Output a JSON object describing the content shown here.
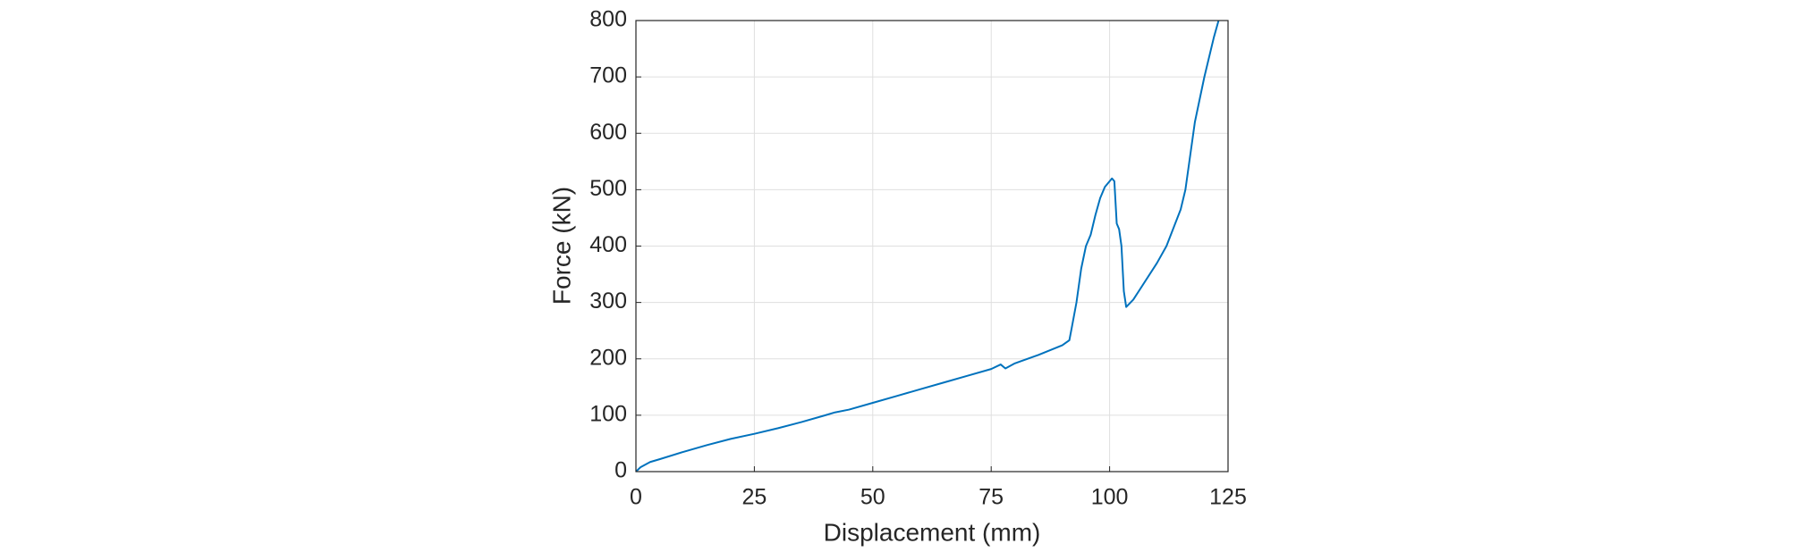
{
  "chart_data": {
    "type": "line",
    "xlabel": "Displacement (mm)",
    "ylabel": "Force (kN)",
    "x": [
      0,
      1,
      3,
      5,
      10,
      15,
      20,
      25,
      30,
      35,
      40,
      42,
      45,
      50,
      55,
      60,
      65,
      70,
      75,
      77,
      78,
      80,
      85,
      90,
      91.5,
      92,
      93,
      94,
      95,
      96,
      97,
      98,
      99,
      100.5,
      101,
      101.5,
      102,
      102.5,
      103,
      103.5,
      105,
      110,
      112,
      115,
      116,
      117,
      118,
      120,
      122,
      123
    ],
    "series": [
      {
        "color": "#0072bd",
        "values": [
          0,
          8,
          17,
          22,
          35,
          47,
          58,
          67,
          77,
          88,
          100,
          105,
          110,
          122,
          134,
          146,
          158,
          170,
          182,
          190,
          183,
          192,
          207,
          224,
          233,
          255,
          300,
          360,
          400,
          420,
          455,
          485,
          505,
          520,
          515,
          440,
          430,
          400,
          320,
          292,
          305,
          370,
          400,
          465,
          500,
          560,
          620,
          700,
          770,
          800
        ]
      }
    ],
    "xlim": [
      0,
      125
    ],
    "xticks": [
      0,
      25,
      50,
      75,
      100,
      125
    ],
    "ylim": [
      0,
      800
    ],
    "yticks": [
      0,
      100,
      200,
      300,
      400,
      500,
      600,
      700,
      800
    ],
    "grid": true
  }
}
